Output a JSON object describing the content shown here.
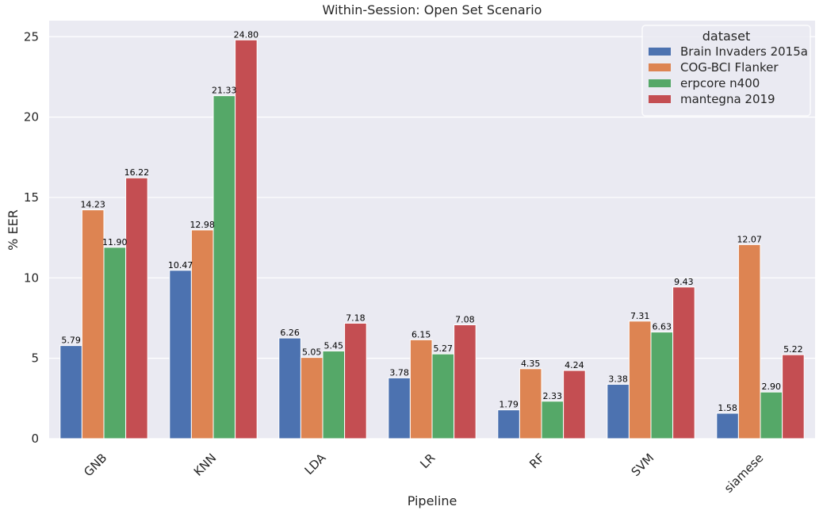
{
  "chart_data": {
    "type": "bar",
    "title": "Within-Session: Open Set Scenario",
    "xlabel": "Pipeline",
    "ylabel": "% EER",
    "ylim": [
      0,
      26
    ],
    "yticks": [
      0,
      5,
      10,
      15,
      20,
      25
    ],
    "grid": true,
    "legend_title": "dataset",
    "legend_position": "top-right",
    "categories": [
      "GNB",
      "KNN",
      "LDA",
      "LR",
      "RF",
      "SVM",
      "siamese"
    ],
    "series": [
      {
        "name": "Brain Invaders 2015a",
        "color": "#4c72b0",
        "values": [
          5.79,
          10.47,
          6.26,
          3.78,
          1.79,
          3.38,
          1.58
        ]
      },
      {
        "name": "COG-BCI Flanker",
        "color": "#dd8452",
        "values": [
          14.23,
          12.98,
          5.05,
          6.15,
          4.35,
          7.31,
          12.07
        ]
      },
      {
        "name": "erpcore n400",
        "color": "#55a868",
        "values": [
          11.9,
          21.33,
          5.45,
          5.27,
          2.33,
          6.63,
          2.9
        ]
      },
      {
        "name": "mantegna 2019",
        "color": "#c44e52",
        "values": [
          16.22,
          24.8,
          7.18,
          7.08,
          4.24,
          9.43,
          5.22
        ]
      }
    ]
  }
}
